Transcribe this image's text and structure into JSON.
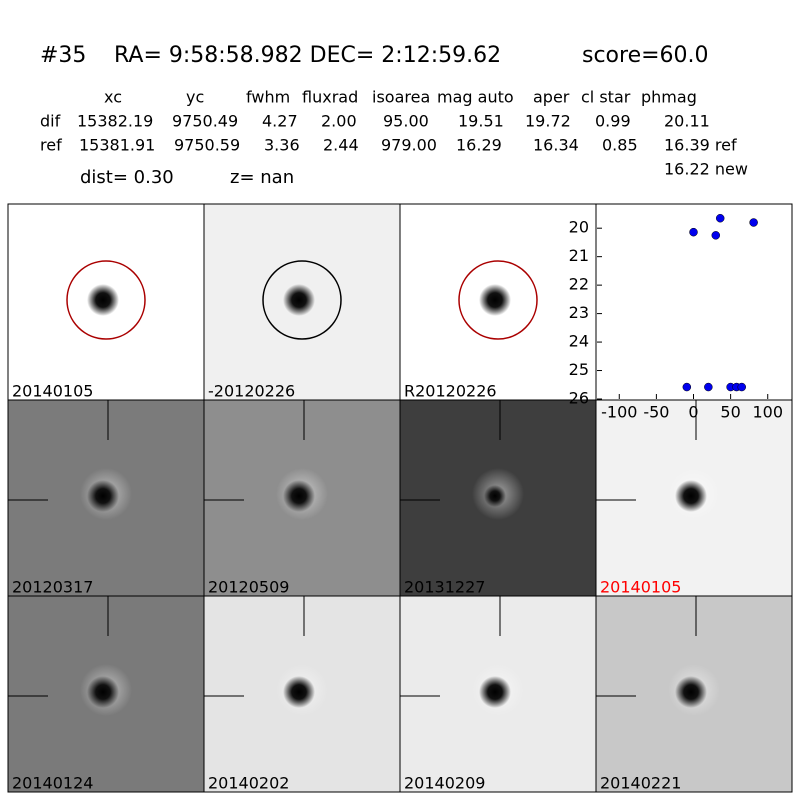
{
  "header": {
    "id": "#35",
    "coords": "RA= 9:58:58.982 DEC= 2:12:59.62",
    "score": "score=60.0"
  },
  "table": {
    "columns": [
      "xc",
      "yc",
      "fwhm",
      "fluxrad",
      "isoarea",
      "mag auto",
      "aper",
      "cl star",
      "phmag"
    ],
    "rows": [
      [
        "dif",
        "15382.19",
        "9750.49",
        "4.27",
        "2.00",
        "95.00",
        "19.51",
        "19.72",
        "0.99",
        "20.11"
      ],
      [
        "ref",
        "15381.91",
        "9750.59",
        "3.36",
        "2.44",
        "979.00",
        "16.29",
        "16.34",
        "0.85",
        "16.39 ref"
      ]
    ],
    "extra": "16.22 new"
  },
  "dist": "dist=  0.30",
  "z": "z=   nan",
  "panels": [
    {
      "label": "20140105"
    },
    {
      "label": "-20120226"
    },
    {
      "label": "R20120226"
    },
    {
      "label": "20120317"
    },
    {
      "label": "20120509"
    },
    {
      "label": "20131227"
    },
    {
      "label": "20140105",
      "label_color": "red"
    },
    {
      "label": "20140124"
    },
    {
      "label": "20140202"
    },
    {
      "label": "20140209"
    },
    {
      "label": "20140221"
    }
  ],
  "chart_data": {
    "type": "scatter",
    "color": "#0000ee",
    "x": [
      0,
      30,
      36,
      81,
      -9,
      20,
      50,
      58,
      65
    ],
    "values": [
      20.14,
      20.25,
      19.65,
      19.8,
      25.58,
      25.58,
      25.58,
      25.58,
      25.58
    ],
    "xlim": [
      -130,
      130
    ],
    "ylim": [
      26,
      19.15
    ],
    "xticks": [
      -100,
      -50,
      0,
      50,
      100
    ],
    "yticks": [
      20,
      21,
      22,
      23,
      24,
      25,
      26
    ]
  }
}
